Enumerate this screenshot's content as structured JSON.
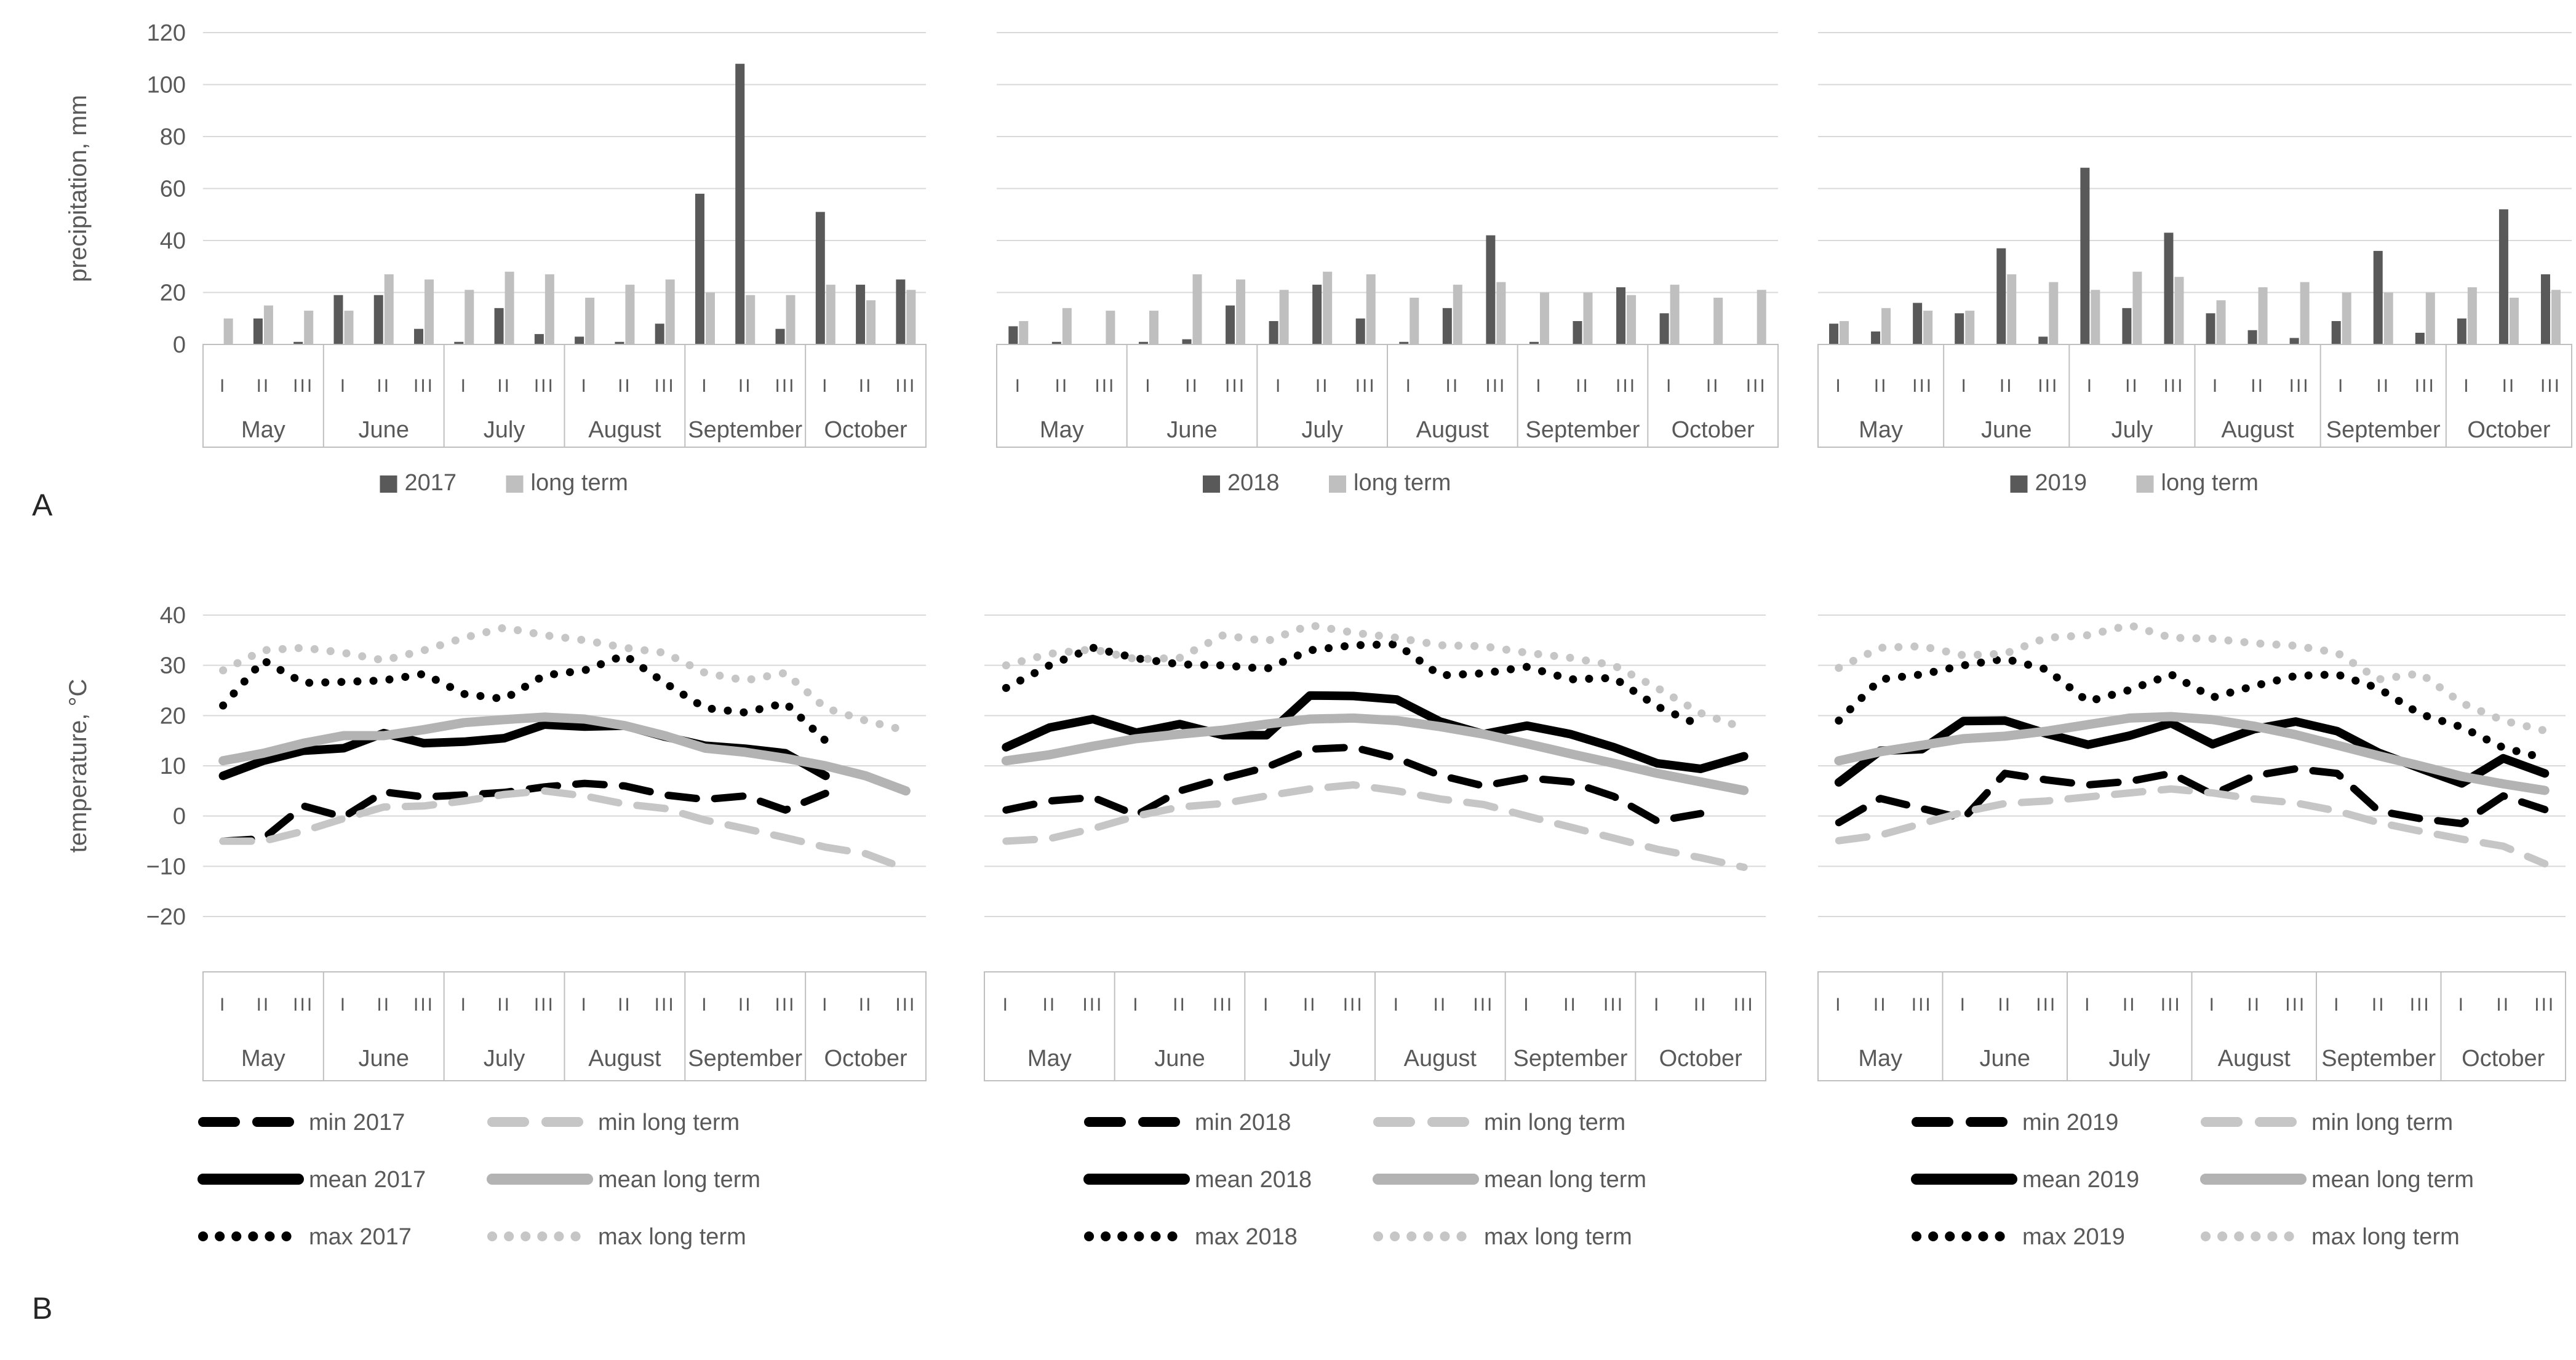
{
  "panels": {
    "a_label": "A",
    "b_label": "B"
  },
  "months": [
    "May",
    "June",
    "July",
    "August",
    "September",
    "October"
  ],
  "decades": [
    "I",
    "II",
    "III"
  ],
  "colors": {
    "bar_year": "#595959",
    "bar_long_term": "#bfbfbf",
    "line_year": "#000000",
    "line_long_term_mean": "#b3b3b3",
    "line_long_term_minmax": "#c6c6c6",
    "gridline": "#d9d9d9",
    "axis_line": "#bfbfbf",
    "text": "#595959"
  },
  "chart_data": [
    {
      "type": "bar",
      "group": "precipitation",
      "ylabel": "precipitation, mm",
      "ylim": [
        0,
        120
      ],
      "yticks": [
        {
          "v": 0,
          "label": "0"
        },
        {
          "v": 20,
          "label": "20"
        },
        {
          "v": 40,
          "label": "40"
        },
        {
          "v": 60,
          "label": "60"
        },
        {
          "v": 80,
          "label": "80"
        },
        {
          "v": 100,
          "label": "100"
        },
        {
          "v": 120,
          "label": "120"
        }
      ],
      "charts": [
        {
          "year": "2017",
          "legend": [
            "2017",
            "long term"
          ],
          "series": [
            {
              "name": "2017",
              "role": "year",
              "values": [
                0,
                10,
                1,
                19,
                19,
                6,
                1,
                14,
                4,
                3,
                1,
                8,
                58,
                108,
                6,
                51,
                23,
                25
              ]
            },
            {
              "name": "long term",
              "role": "long_term",
              "values": [
                10,
                15,
                13,
                13,
                27,
                25,
                21,
                28,
                27,
                18,
                23,
                25,
                20,
                19,
                19,
                23,
                17,
                21
              ]
            }
          ]
        },
        {
          "year": "2018",
          "legend": [
            "2018",
            "long term"
          ],
          "series": [
            {
              "name": "2018",
              "role": "year",
              "values": [
                7,
                1,
                0,
                1,
                2,
                15,
                9,
                23,
                10,
                1,
                14,
                42,
                1,
                9,
                22,
                12,
                0,
                0
              ]
            },
            {
              "name": "long term",
              "role": "long_term",
              "values": [
                9,
                14,
                13,
                13,
                27,
                25,
                21,
                28,
                27,
                18,
                23,
                24,
                20,
                20,
                19,
                23,
                18,
                21
              ]
            }
          ]
        },
        {
          "year": "2019",
          "legend": [
            "2019",
            "long term"
          ],
          "series": [
            {
              "name": "2019",
              "role": "year",
              "values": [
                8,
                5,
                16,
                12,
                37,
                3,
                68,
                14,
                43,
                12,
                5.5,
                2.5,
                9,
                36,
                4.5,
                10,
                52,
                27
              ]
            },
            {
              "name": "long term",
              "role": "long_term",
              "values": [
                9,
                14,
                13,
                13,
                27,
                24,
                21,
                28,
                26,
                17,
                22,
                24,
                20,
                20,
                20,
                22,
                18,
                21
              ]
            }
          ]
        }
      ]
    },
    {
      "type": "line",
      "group": "temperature",
      "ylabel": "temperature, °C",
      "ylim": [
        -20,
        40
      ],
      "yticks": [
        {
          "v": 40,
          "label": "40"
        },
        {
          "v": 30,
          "label": "30"
        },
        {
          "v": 20,
          "label": "20"
        },
        {
          "v": 10,
          "label": "10"
        },
        {
          "v": 0,
          "label": "0"
        },
        {
          "v": -10,
          "label": "−10"
        },
        {
          "v": -20,
          "label": "−20"
        }
      ],
      "charts": [
        {
          "year": "2017",
          "legend": [
            "min 2017",
            "min long term",
            "mean 2017",
            "mean long term",
            "max 2017",
            "max long term"
          ],
          "series": [
            {
              "name": "min 2017",
              "role": "min_year",
              "values": [
                -5,
                -4.5,
                2,
                -0.2,
                4.8,
                3.8,
                4.2,
                4.7,
                5.8,
                6.5,
                6,
                4.2,
                3.3,
                4,
                1.2,
                4.5,
                null,
                null
              ]
            },
            {
              "name": "min long term",
              "role": "min_lt",
              "values": [
                -5,
                -5,
                -3,
                -0.5,
                1.8,
                2,
                3,
                4.3,
                5,
                4,
                2.4,
                1.5,
                -0.8,
                -2.5,
                -4.3,
                -6.2,
                -7.5,
                -10.5
              ]
            },
            {
              "name": "mean 2017",
              "role": "mean_year",
              "values": [
                8,
                11,
                13,
                13.5,
                16.5,
                14.5,
                14.8,
                15.5,
                18.2,
                17.8,
                18,
                15.8,
                14,
                13.4,
                12.5,
                8,
                null,
                null
              ]
            },
            {
              "name": "mean long term",
              "role": "mean_lt",
              "values": [
                11,
                12.5,
                14.5,
                16,
                16,
                17.2,
                18.6,
                19.2,
                19.7,
                19.3,
                18,
                16,
                13.5,
                12.7,
                11.5,
                10,
                8,
                5
              ]
            },
            {
              "name": "max 2017",
              "role": "max_year",
              "values": [
                22,
                31,
                26.5,
                26.7,
                27,
                28.3,
                24.3,
                23.3,
                28,
                29,
                32,
                26.5,
                21.5,
                20.6,
                22.5,
                15,
                null,
                null
              ]
            },
            {
              "name": "max long term",
              "role": "max_lt",
              "values": [
                29,
                33,
                33.5,
                32.5,
                31,
                33,
                35.5,
                37.5,
                36,
                35,
                33.5,
                32.5,
                28.5,
                27,
                28.5,
                21.5,
                19,
                17
              ]
            }
          ]
        },
        {
          "year": "2018",
          "legend": [
            "min 2018",
            "min long term",
            "mean 2018",
            "mean long term",
            "max 2018",
            "max long term"
          ],
          "series": [
            {
              "name": "min 2018",
              "role": "min_year",
              "values": [
                1.2,
                3,
                3.7,
                0.2,
                5,
                7.5,
                9.7,
                13.3,
                13.7,
                11.5,
                8.1,
                6,
                7.6,
                6.8,
                3.9,
                -1,
                0.5,
                null
              ]
            },
            {
              "name": "min long term",
              "role": "min_lt",
              "values": [
                -5,
                -4.5,
                -2.5,
                0,
                1.8,
                2.5,
                4,
                5.4,
                6.2,
                5,
                3.4,
                2.3,
                0,
                -2.2,
                -4.4,
                -6.6,
                -8.3,
                -10.2
              ]
            },
            {
              "name": "mean 2018",
              "role": "mean_year",
              "values": [
                13.7,
                17.6,
                19.3,
                16.6,
                18.3,
                16.1,
                16.1,
                24,
                23.9,
                23.2,
                18.8,
                16.3,
                18,
                16.3,
                13.7,
                10.5,
                9.4,
                11.9
              ]
            },
            {
              "name": "mean long term",
              "role": "mean_lt",
              "values": [
                11,
                12.2,
                13.9,
                15.4,
                16.3,
                17.1,
                18.3,
                19.3,
                19.5,
                19,
                17.8,
                16.3,
                14.4,
                12.4,
                10.5,
                8.5,
                6.8,
                5.1
              ]
            },
            {
              "name": "max 2018",
              "role": "max_year",
              "values": [
                25.5,
                30,
                33.5,
                31.4,
                30.2,
                30,
                29.3,
                33,
                34,
                34.2,
                28,
                28.4,
                29.7,
                27.2,
                27.5,
                21.8,
                18,
                null
              ]
            },
            {
              "name": "max long term",
              "role": "max_lt",
              "values": [
                30,
                32.3,
                33.2,
                31.2,
                31.5,
                36,
                34.8,
                38,
                36.5,
                35.5,
                34,
                33.8,
                32.5,
                31.5,
                30,
                25.5,
                20.5,
                17.5
              ]
            }
          ]
        },
        {
          "year": "2019",
          "legend": [
            "min 2019",
            "min long term",
            "mean 2019",
            "mean long term",
            "max 2019",
            "max long term"
          ],
          "series": [
            {
              "name": "min 2019",
              "role": "min_year",
              "values": [
                -1.3,
                3.5,
                1.5,
                -0.5,
                8.5,
                7.2,
                6.2,
                6.9,
                8.5,
                4.3,
                8,
                9.4,
                8.5,
                1,
                -0.5,
                -1.5,
                4,
                1.3
              ]
            },
            {
              "name": "min long term",
              "role": "min_lt",
              "values": [
                -4.9,
                -3.8,
                -1.5,
                0.8,
                2.5,
                3,
                3.8,
                4.6,
                5.4,
                4.6,
                3.4,
                2.6,
                1,
                -1.3,
                -3,
                -4.6,
                -6,
                -9.5
              ]
            },
            {
              "name": "mean 2019",
              "role": "mean_year",
              "values": [
                6.7,
                13,
                13.3,
                18.9,
                19,
                16.4,
                14.2,
                16,
                18.5,
                14.3,
                17.3,
                18.8,
                16.9,
                12.6,
                9.5,
                6.5,
                11.5,
                8.5
              ]
            },
            {
              "name": "mean long term",
              "role": "mean_lt",
              "values": [
                11,
                12.8,
                14.1,
                15.4,
                15.9,
                16.9,
                18.2,
                19.5,
                19.8,
                19.2,
                17.9,
                16.2,
                14.1,
                12,
                10,
                7.9,
                6.4,
                5.1
              ]
            },
            {
              "name": "max 2019",
              "role": "max_year",
              "values": [
                19,
                27.2,
                28.2,
                30,
                31.3,
                29.2,
                22.8,
                25.1,
                28.2,
                23.6,
                25.9,
                27.9,
                28.2,
                25.4,
                20.3,
                17.7,
                13.6,
                11.5
              ]
            },
            {
              "name": "max long term",
              "role": "max_lt",
              "values": [
                29.5,
                33.5,
                33.8,
                32,
                32.3,
                35.5,
                36,
                38,
                35.5,
                35.3,
                34.4,
                33.9,
                32.5,
                27.2,
                28.4,
                22.5,
                19,
                17
              ]
            }
          ]
        }
      ]
    }
  ]
}
